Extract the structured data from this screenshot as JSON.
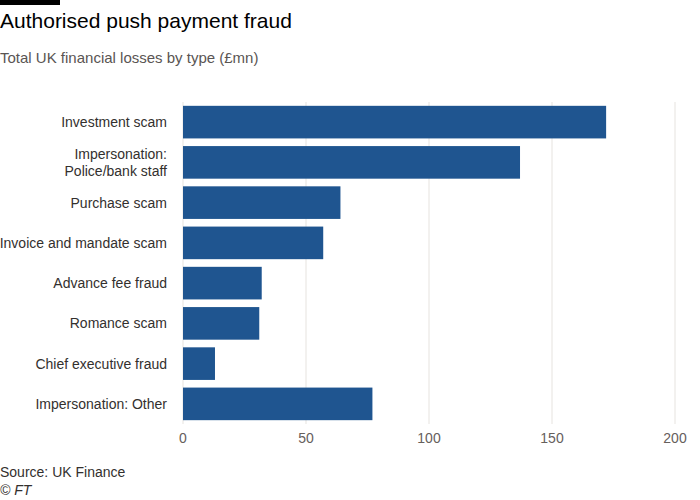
{
  "chart_data": {
    "type": "bar",
    "orientation": "horizontal",
    "title": "Authorised push payment fraud",
    "subtitle": "Total UK financial losses by type (£mn)",
    "categories": [
      "Investment scam",
      "Impersonation:\nPolice/bank staff",
      "Purchase scam",
      "Invoice and mandate scam",
      "Advance fee fraud",
      "Romance scam",
      "Chief executive fraud",
      "Impersonation: Other"
    ],
    "values": [
      172,
      137,
      64,
      57,
      32,
      31,
      13,
      77
    ],
    "color": "#1f5590",
    "xlim": [
      0,
      200
    ],
    "xticks": [
      0,
      50,
      100,
      150,
      200
    ],
    "grid": true,
    "source": "Source: UK Finance",
    "credit": "© FT"
  }
}
